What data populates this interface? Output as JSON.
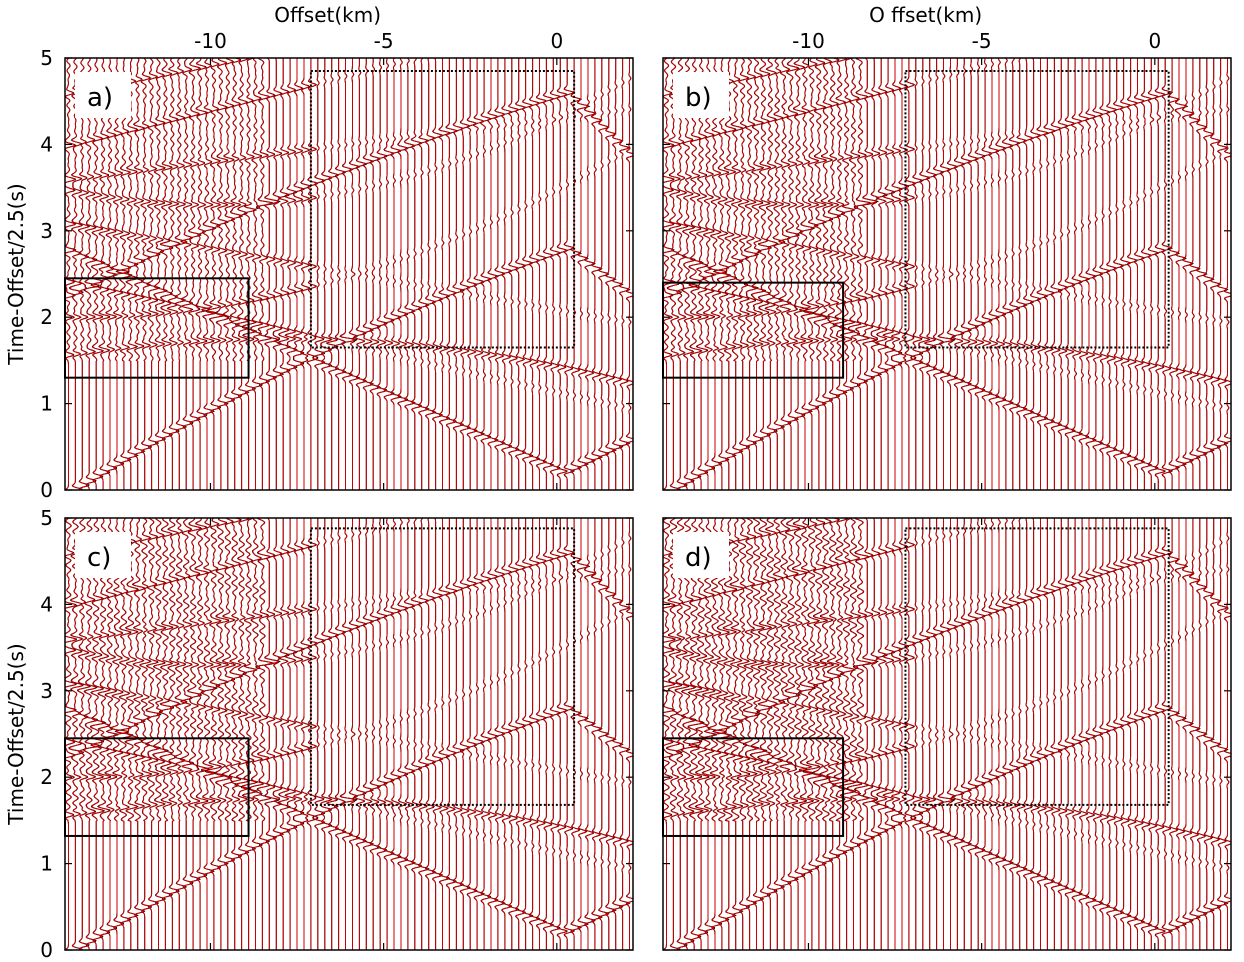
{
  "chart_data": [
    {
      "type": "wiggle",
      "panel_label": "a)",
      "xlabel": "Offset(km)",
      "ylabel": "Time-Offset/2.5(s)",
      "xlim": [
        -14.2,
        2.2
      ],
      "ylim": [
        5,
        0
      ],
      "xticks": [
        -10,
        -5,
        0
      ],
      "yticks": [
        0,
        1,
        2,
        3,
        4,
        5
      ],
      "tick_labels": {
        "x": true,
        "y": true
      },
      "trace_color": "#cc0000",
      "boxes": [
        {
          "style": "solid",
          "x": [
            -14.2,
            -8.9
          ],
          "y": [
            1.3,
            2.45
          ]
        },
        {
          "style": "dotted",
          "x": [
            -7.1,
            0.5
          ],
          "y": [
            1.65,
            4.85
          ]
        }
      ]
    },
    {
      "type": "wiggle",
      "panel_label": "b)",
      "xlabel": "O ffset(km)",
      "xlim": [
        -14.2,
        2.2
      ],
      "ylim": [
        5,
        0
      ],
      "xticks": [
        -10,
        -5,
        0
      ],
      "yticks": [
        0,
        1,
        2,
        3,
        4,
        5
      ],
      "tick_labels": {
        "x": true,
        "y": false
      },
      "trace_color": "#cc0000",
      "boxes": [
        {
          "style": "solid",
          "x": [
            -14.2,
            -9.0
          ],
          "y": [
            1.3,
            2.4
          ]
        },
        {
          "style": "dotted",
          "x": [
            -7.2,
            0.4
          ],
          "y": [
            1.65,
            4.85
          ]
        }
      ]
    },
    {
      "type": "wiggle",
      "panel_label": "c)",
      "ylabel": "Time-Offset/2.5(s)",
      "xlim": [
        -14.2,
        2.2
      ],
      "ylim": [
        5,
        0
      ],
      "xticks": [
        -10,
        -5,
        0
      ],
      "yticks": [
        0,
        1,
        2,
        3,
        4,
        5
      ],
      "tick_labels": {
        "x": false,
        "y": true
      },
      "trace_color": "#cc0000",
      "boxes": [
        {
          "style": "solid",
          "x": [
            -14.2,
            -8.9
          ],
          "y": [
            1.32,
            2.45
          ]
        },
        {
          "style": "dotted",
          "x": [
            -7.1,
            0.5
          ],
          "y": [
            1.68,
            4.88
          ]
        }
      ]
    },
    {
      "type": "wiggle",
      "panel_label": "d)",
      "xlim": [
        -14.2,
        2.2
      ],
      "ylim": [
        5,
        0
      ],
      "xticks": [
        -10,
        -5,
        0
      ],
      "yticks": [
        0,
        1,
        2,
        3,
        4,
        5
      ],
      "tick_labels": {
        "x": false,
        "y": false
      },
      "trace_color": "#cc0000",
      "boxes": [
        {
          "style": "solid",
          "x": [
            -14.2,
            -9.0
          ],
          "y": [
            1.32,
            2.45
          ]
        },
        {
          "style": "dotted",
          "x": [
            -7.2,
            0.4
          ],
          "y": [
            1.68,
            4.88
          ]
        }
      ]
    }
  ]
}
